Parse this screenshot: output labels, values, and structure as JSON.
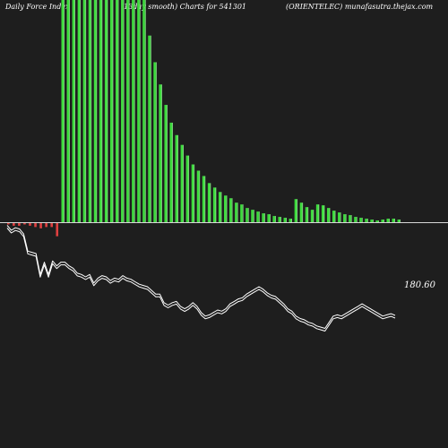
{
  "header": {
    "left": "Daily Force  Index",
    "middle": "(13day smooth) Charts for 541301",
    "right": "(ORIENTELEC) munafasutra.thejax.com"
  },
  "colors": {
    "background": "#1e1e1e",
    "positive_bar": "#3ddc3d",
    "positive_bar_light": "#90ee90",
    "negative_bar": "#e04040",
    "zero_line": "#d8d8d8",
    "price_line": "#ffffff"
  },
  "chart_data": [
    {
      "type": "bar",
      "series": [
        {
          "name": "",
          "values": [
            -1,
            -2,
            -2,
            -1,
            -2,
            -3,
            -4,
            -3,
            -3,
            -10,
            250,
            250,
            250,
            250,
            250,
            250,
            250,
            250,
            250,
            250,
            250,
            250,
            250,
            250,
            250,
            250,
            210,
            180,
            155,
            132,
            112,
            98,
            87,
            75,
            65,
            58,
            52,
            44,
            39,
            34,
            30,
            27,
            22,
            20,
            16,
            14,
            12,
            10,
            9,
            7,
            6,
            5,
            4,
            26,
            22,
            17,
            14,
            20,
            19,
            16,
            13,
            11,
            9,
            8,
            6,
            5,
            4,
            3,
            2,
            3,
            4,
            4,
            3
          ]
        }
      ],
      "ylim": [
        -15,
        250
      ]
    },
    {
      "type": "line",
      "series": [
        {
          "name": "",
          "values": [
            254,
            250,
            252,
            251,
            247,
            233,
            232,
            231,
            214,
            224,
            214,
            225,
            221,
            224,
            224,
            221,
            219,
            215,
            214,
            212,
            214,
            207,
            211,
            213,
            212,
            209,
            211,
            210,
            213,
            211,
            210,
            208,
            206,
            205,
            204,
            201,
            198,
            198,
            191,
            189,
            191,
            192,
            188,
            186,
            188,
            191,
            188,
            183,
            180,
            181,
            183,
            185,
            184,
            186,
            190,
            192,
            194,
            195,
            198,
            200,
            202,
            204,
            202,
            199,
            197,
            196,
            193,
            190,
            186,
            184,
            180,
            178,
            177,
            175,
            174,
            172,
            171,
            170,
            175,
            180,
            181,
            180,
            182,
            184,
            186,
            188,
            190,
            188,
            186,
            184,
            182,
            180,
            181,
            182,
            180.6
          ]
        }
      ],
      "last_value_label": "180.60"
    }
  ]
}
